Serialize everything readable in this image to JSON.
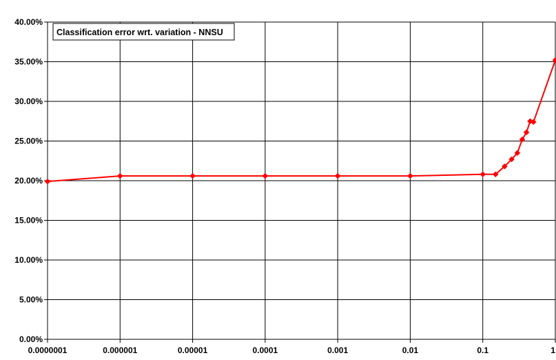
{
  "chart_data": {
    "type": "line",
    "title": "Classification error wrt. variation - NNSU",
    "xlabel": "",
    "ylabel": "",
    "x_scale": "log",
    "xlim": [
      1e-07,
      1
    ],
    "ylim": [
      0,
      0.4
    ],
    "grid": true,
    "legend": "none",
    "x_tick_labels": [
      "0.0000001",
      "0.000001",
      "0.00001",
      "0.0001",
      "0.001",
      "0.01",
      "0.1",
      "1"
    ],
    "x_tick_values": [
      1e-07,
      1e-06,
      1e-05,
      0.0001,
      0.001,
      0.01,
      0.1,
      1
    ],
    "y_tick_labels": [
      "0.00%",
      "5.00%",
      "10.00%",
      "15.00%",
      "20.00%",
      "25.00%",
      "30.00%",
      "35.00%",
      "40.00%"
    ],
    "y_tick_values": [
      0,
      0.05,
      0.1,
      0.15,
      0.2,
      0.25,
      0.3,
      0.35,
      0.4
    ],
    "series": [
      {
        "color": "#ff0000",
        "marker": "diamond",
        "x": [
          1e-07,
          1e-06,
          1e-05,
          0.0001,
          0.001,
          0.01,
          0.1,
          0.15,
          0.2,
          0.25,
          0.3,
          0.35,
          0.4,
          0.45,
          0.5,
          1
        ],
        "y": [
          0.199,
          0.206,
          0.206,
          0.206,
          0.206,
          0.206,
          0.208,
          0.208,
          0.218,
          0.227,
          0.235,
          0.252,
          0.261,
          0.275,
          0.274,
          0.352
        ]
      }
    ]
  }
}
